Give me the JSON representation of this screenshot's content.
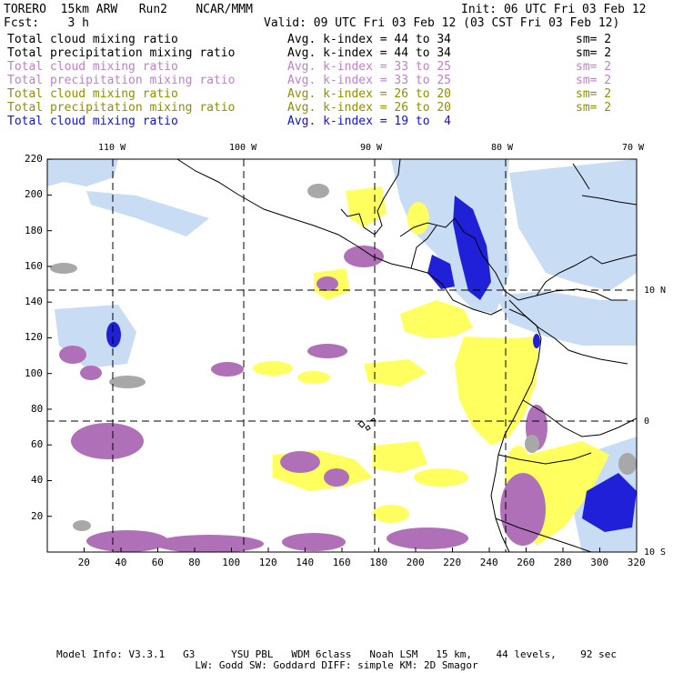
{
  "header": {
    "model": "TORERO  15km ARW   Run2    NCAR/MMM",
    "init": "Init: 06 UTC Fri 03 Feb 12",
    "fcst": "Fcst:    3 h",
    "valid": "Valid: 09 UTC Fri 03 Feb 12 (03 CST Fri 03 Feb 12)"
  },
  "legend": [
    {
      "field": "Total cloud mixing ratio",
      "kindex": "Avg. k-index = 44 to 34",
      "sm": "sm= 2",
      "color": "#000000"
    },
    {
      "field": "Total precipitation mixing ratio",
      "kindex": "Avg. k-index = 44 to 34",
      "sm": "sm= 2",
      "color": "#000000"
    },
    {
      "field": "Total cloud mixing ratio",
      "kindex": "Avg. k-index = 33 to 25",
      "sm": "sm= 2",
      "color": "#c080c8"
    },
    {
      "field": "Total precipitation mixing ratio",
      "kindex": "Avg. k-index = 33 to 25",
      "sm": "sm= 2",
      "color": "#c080c8"
    },
    {
      "field": "Total cloud mixing ratio",
      "kindex": "Avg. k-index = 26 to 20",
      "sm": "sm= 2",
      "color": "#909000"
    },
    {
      "field": "Total precipitation mixing ratio",
      "kindex": "Avg. k-index = 26 to 20",
      "sm": "sm= 2",
      "color": "#909000"
    },
    {
      "field": "Total cloud mixing ratio",
      "kindex": "Avg. k-index = 19 to  4",
      "sm": "",
      "color": "#1010e0"
    }
  ],
  "map": {
    "lon_labels": [
      "110 W",
      "100 W",
      "90 W",
      "80 W",
      "70 W"
    ],
    "lat_labels": [
      "10 N",
      "0",
      "10 S"
    ],
    "x_ticks": [
      "20",
      "40",
      "60",
      "80",
      "100",
      "120",
      "140",
      "160",
      "180",
      "200",
      "220",
      "240",
      "260",
      "280",
      "300",
      "320"
    ],
    "y_ticks": [
      "220",
      "200",
      "180",
      "160",
      "140",
      "120",
      "100",
      "80",
      "60",
      "40",
      "20"
    ],
    "colors": {
      "gray": "#a8a8a8",
      "purple": "#b070b8",
      "yellow": "#ffff60",
      "lightblue": "#c8dcf4",
      "blue": "#2020d8"
    }
  },
  "footer": {
    "line1": "Model Info: V3.3.1   G3      YSU PBL   WDM 6class   Noah LSM   15 km,    44 levels,    92 sec",
    "line2": "LW: Godd SW: Goddard DIFF: simple KM: 2D Smagor"
  }
}
